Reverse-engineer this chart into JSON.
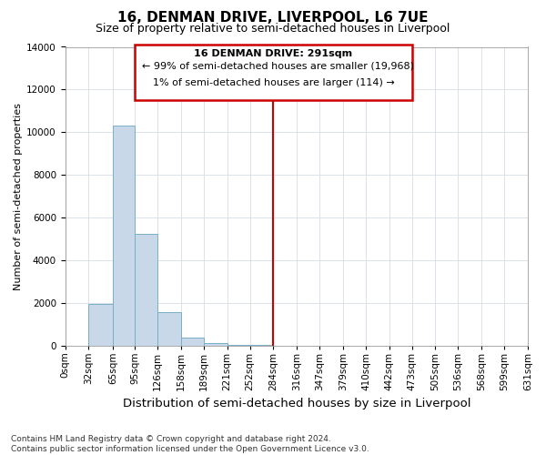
{
  "title": "16, DENMAN DRIVE, LIVERPOOL, L6 7UE",
  "subtitle": "Size of property relative to semi-detached houses in Liverpool",
  "xlabel": "Distribution of semi-detached houses by size in Liverpool",
  "ylabel": "Number of semi-detached properties",
  "footnote": "Contains HM Land Registry data © Crown copyright and database right 2024.\nContains public sector information licensed under the Open Government Licence v3.0.",
  "annotation_title": "16 DENMAN DRIVE: 291sqm",
  "annotation_line1": "← 99% of semi-detached houses are smaller (19,968)",
  "annotation_line2": "1% of semi-detached houses are larger (114) →",
  "bar_edges": [
    0,
    32,
    65,
    95,
    126,
    158,
    189,
    221,
    252,
    284,
    316,
    347,
    379,
    410,
    442,
    473,
    505,
    536,
    568,
    599,
    631
  ],
  "bar_heights": [
    0,
    1950,
    10300,
    5250,
    1550,
    350,
    100,
    30,
    10,
    0,
    0,
    0,
    0,
    0,
    0,
    0,
    0,
    0,
    0,
    0
  ],
  "bar_color": "#c8d8e8",
  "bar_edge_color": "#7aaec8",
  "vline_color": "#cc0000",
  "vline_x": 284,
  "annotation_box_color": "#cc0000",
  "ylim": [
    0,
    14000
  ],
  "yticks": [
    0,
    2000,
    4000,
    6000,
    8000,
    10000,
    12000,
    14000
  ],
  "title_fontsize": 11,
  "subtitle_fontsize": 9,
  "xlabel_fontsize": 9.5,
  "ylabel_fontsize": 8,
  "tick_fontsize": 7.5,
  "annotation_fontsize": 8,
  "footnote_fontsize": 6.5
}
